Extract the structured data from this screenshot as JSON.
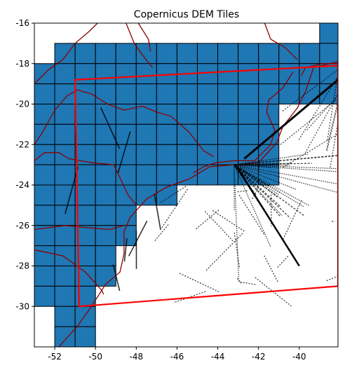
{
  "chart_data": {
    "type": "map",
    "title": "Copernicus DEM Tiles",
    "xlabel": "",
    "ylabel": "",
    "xlim": [
      -53,
      -38.1
    ],
    "ylim": [
      -32,
      -16
    ],
    "xticks": [
      -52,
      -50,
      -48,
      -46,
      -44,
      -42,
      -40
    ],
    "yticks": [
      -16,
      -18,
      -20,
      -22,
      -24,
      -26,
      -28,
      -30
    ],
    "tile_size_deg": 1,
    "tile_rows": [
      {
        "lat_max": -16,
        "lon_min": -39,
        "lon_max": -38
      },
      {
        "lat_max": -17,
        "lon_min": -52,
        "lon_max": -38
      },
      {
        "lat_max": -18,
        "lon_min": -53,
        "lon_max": -38
      },
      {
        "lat_max": -19,
        "lon_min": -53,
        "lon_max": -38
      },
      {
        "lat_max": -20,
        "lon_min": -53,
        "lon_max": -41
      },
      {
        "lat_max": -21,
        "lon_min": -53,
        "lon_max": -41
      },
      {
        "lat_max": -22,
        "lon_min": -53,
        "lon_max": -41
      },
      {
        "lat_max": -23,
        "lon_min": -53,
        "lon_max": -41
      },
      {
        "lat_max": -24,
        "lon_min": -53,
        "lon_max": -46
      },
      {
        "lat_max": -25,
        "lon_min": -53,
        "lon_max": -48
      },
      {
        "lat_max": -26,
        "lon_min": -53,
        "lon_max": -48
      },
      {
        "lat_max": -27,
        "lon_min": -53,
        "lon_max": -49
      },
      {
        "lat_max": -28,
        "lon_min": -53,
        "lon_max": -49
      },
      {
        "lat_max": -29,
        "lon_min": -53,
        "lon_max": -50
      },
      {
        "lat_max": -30,
        "lon_min": -52,
        "lon_max": -50
      },
      {
        "lat_max": -31,
        "lon_min": -52,
        "lon_max": -50
      }
    ],
    "region_polygon": [
      [
        -51,
        -18.8
      ],
      [
        -38.1,
        -18.1
      ],
      [
        -38.1,
        -29.0
      ],
      [
        -50.8,
        -30.0
      ]
    ],
    "state_borders": [
      [
        [
          -53,
          -19.0
        ],
        [
          -52.3,
          -18.3
        ],
        [
          -51.6,
          -17.8
        ],
        [
          -51.0,
          -17.0
        ],
        [
          -50.3,
          -16.4
        ],
        [
          -49.9,
          -16.0
        ]
      ],
      [
        [
          -48.5,
          -16.0
        ],
        [
          -48.1,
          -17.0
        ],
        [
          -47.6,
          -17.7
        ],
        [
          -47.2,
          -18.2
        ]
      ],
      [
        [
          -47.9,
          -16.0
        ],
        [
          -47.4,
          -16.8
        ],
        [
          -47.3,
          -17.4
        ]
      ],
      [
        [
          -41.7,
          -16.0
        ],
        [
          -41.4,
          -16.8
        ],
        [
          -40.7,
          -17.2
        ],
        [
          -40.1,
          -17.8
        ]
      ],
      [
        [
          -53,
          -22.8
        ],
        [
          -52.5,
          -22.4
        ],
        [
          -51.8,
          -22.4
        ],
        [
          -51.3,
          -22.7
        ],
        [
          -50.2,
          -22.9
        ],
        [
          -49.1,
          -23.0
        ],
        [
          -48.4,
          -24.5
        ],
        [
          -48.0,
          -25.0
        ]
      ],
      [
        [
          -53,
          -26.2
        ],
        [
          -51.5,
          -26.0
        ],
        [
          -50.5,
          -26.1
        ],
        [
          -49.3,
          -26.2
        ],
        [
          -48.6,
          -26.0
        ]
      ],
      [
        [
          -53,
          -27.2
        ],
        [
          -51.6,
          -27.5
        ],
        [
          -50.5,
          -28.3
        ],
        [
          -49.7,
          -29.2
        ],
        [
          -49.6,
          -29.4
        ]
      ],
      [
        [
          -53,
          -22.0
        ],
        [
          -52.6,
          -21.4
        ],
        [
          -52.0,
          -20.3
        ],
        [
          -51.4,
          -19.6
        ],
        [
          -50.9,
          -19.3
        ],
        [
          -50.2,
          -19.5
        ],
        [
          -49.4,
          -20.0
        ],
        [
          -48.6,
          -20.3
        ],
        [
          -47.7,
          -20.1
        ],
        [
          -47.0,
          -20.4
        ],
        [
          -46.3,
          -20.6
        ],
        [
          -45.4,
          -21.4
        ],
        [
          -44.7,
          -22.3
        ],
        [
          -44.2,
          -22.6
        ]
      ],
      [
        [
          -45.2,
          -23.4
        ],
        [
          -44.7,
          -23.1
        ],
        [
          -44.1,
          -22.9
        ],
        [
          -43.2,
          -22.8
        ],
        [
          -42.2,
          -22.8
        ],
        [
          -41.4,
          -22.0
        ],
        [
          -41.2,
          -21.3
        ]
      ],
      [
        [
          -41.2,
          -21.3
        ],
        [
          -41.6,
          -20.4
        ],
        [
          -41.5,
          -19.8
        ],
        [
          -40.8,
          -19.2
        ],
        [
          -40.3,
          -18.4
        ]
      ],
      [
        [
          -38.1,
          -18.0
        ],
        [
          -38.9,
          -18.0
        ],
        [
          -39.7,
          -18.2
        ],
        [
          -39.9,
          -18.6
        ]
      ]
    ],
    "coastline": [
      [
        -38.1,
        -17.9
      ],
      [
        -39.3,
        -18.2
      ],
      [
        -39.7,
        -19.4
      ],
      [
        -40.1,
        -20.2
      ],
      [
        -40.8,
        -21.1
      ],
      [
        -41.1,
        -21.9
      ],
      [
        -42.0,
        -22.9
      ],
      [
        -43.2,
        -23.0
      ],
      [
        -44.4,
        -23.1
      ],
      [
        -45.4,
        -23.7
      ],
      [
        -46.5,
        -24.1
      ],
      [
        -47.5,
        -24.7
      ],
      [
        -48.3,
        -25.6
      ],
      [
        -48.6,
        -26.3
      ],
      [
        -48.6,
        -27.4
      ],
      [
        -48.8,
        -28.3
      ],
      [
        -49.5,
        -28.9
      ],
      [
        -50.2,
        -30.0
      ],
      [
        -50.9,
        -31.0
      ],
      [
        -51.8,
        -32.0
      ]
    ],
    "colors": {
      "tile_fill": "#1f77b4",
      "tile_edge": "#000000",
      "region": "#ff0000",
      "borders": "#8b0000",
      "tracks": "#000000"
    }
  }
}
